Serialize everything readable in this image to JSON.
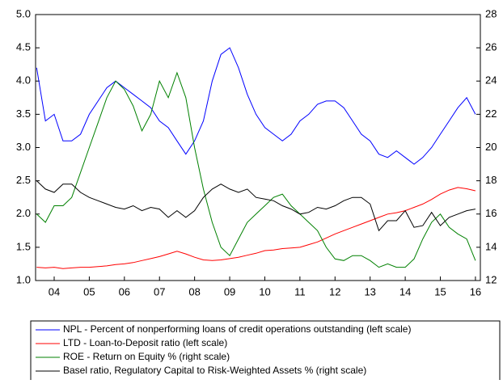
{
  "chart_data": {
    "type": "line",
    "xlim": [
      2003.97,
      2016.64
    ],
    "xticks": [
      {
        "value": 2004.5,
        "label": "04"
      },
      {
        "value": 2005.5,
        "label": "05"
      },
      {
        "value": 2006.5,
        "label": "06"
      },
      {
        "value": 2007.5,
        "label": "07"
      },
      {
        "value": 2008.5,
        "label": "08"
      },
      {
        "value": 2009.5,
        "label": "09"
      },
      {
        "value": 2010.5,
        "label": "10"
      },
      {
        "value": 2011.5,
        "label": "11"
      },
      {
        "value": 2012.5,
        "label": "12"
      },
      {
        "value": 2013.5,
        "label": "13"
      },
      {
        "value": 2014.5,
        "label": "14"
      },
      {
        "value": 2015.5,
        "label": "15"
      },
      {
        "value": 2016.5,
        "label": "16"
      }
    ],
    "ylim": [
      1.0,
      5.0
    ],
    "yticks": [
      {
        "value": 1.0,
        "label": "1.0"
      },
      1.5,
      {
        "value": 2.0,
        "label": "2.0"
      },
      2.5,
      {
        "value": 3.0,
        "label": "3.0"
      },
      3.5,
      {
        "value": 4.0,
        "label": "4.0"
      },
      4.5,
      {
        "value": 5.0,
        "label": "5.0"
      }
    ],
    "y2lim": [
      12,
      28
    ],
    "y2ticks": [
      12,
      14,
      16,
      18,
      20,
      22,
      24,
      26,
      28
    ],
    "x": [
      2004.0,
      2004.25,
      2004.5,
      2004.75,
      2005.0,
      2005.25,
      2005.5,
      2005.75,
      2006.0,
      2006.25,
      2006.5,
      2006.75,
      2007.0,
      2007.25,
      2007.5,
      2007.75,
      2008.0,
      2008.25,
      2008.5,
      2008.75,
      2009.0,
      2009.25,
      2009.5,
      2009.75,
      2010.0,
      2010.25,
      2010.5,
      2010.75,
      2011.0,
      2011.25,
      2011.5,
      2011.75,
      2012.0,
      2012.25,
      2012.5,
      2012.75,
      2013.0,
      2013.25,
      2013.5,
      2013.75,
      2014.0,
      2014.25,
      2014.5,
      2014.75,
      2015.0,
      2015.25,
      2015.5,
      2015.75,
      2016.0,
      2016.25,
      2016.5
    ],
    "series": [
      {
        "name": "NPL - Percent of nonperforming loans of credit operations outstanding (left scale)",
        "color": "#0000ff",
        "values": [
          4.2,
          3.4,
          3.5,
          3.1,
          3.1,
          3.2,
          3.5,
          3.7,
          3.9,
          4.0,
          3.9,
          3.8,
          3.7,
          3.6,
          3.4,
          3.3,
          3.1,
          2.9,
          3.1,
          3.4,
          4.0,
          4.4,
          4.5,
          4.2,
          3.8,
          3.5,
          3.3,
          3.2,
          3.1,
          3.2,
          3.4,
          3.5,
          3.65,
          3.7,
          3.7,
          3.6,
          3.4,
          3.2,
          3.1,
          2.9,
          2.85,
          2.95,
          2.85,
          2.75,
          2.85,
          3.0,
          3.2,
          3.4,
          3.6,
          3.75,
          3.5
        ]
      },
      {
        "name": "LTD - Loan-to-Deposit ratio (left scale)",
        "color": "#ff0000",
        "values": [
          1.2,
          1.19,
          1.2,
          1.18,
          1.19,
          1.2,
          1.2,
          1.21,
          1.22,
          1.24,
          1.25,
          1.27,
          1.3,
          1.33,
          1.36,
          1.4,
          1.44,
          1.4,
          1.35,
          1.31,
          1.3,
          1.31,
          1.33,
          1.35,
          1.38,
          1.41,
          1.45,
          1.46,
          1.48,
          1.49,
          1.5,
          1.54,
          1.58,
          1.64,
          1.7,
          1.75,
          1.8,
          1.85,
          1.9,
          1.95,
          2.0,
          2.02,
          2.05,
          2.1,
          2.15,
          2.22,
          2.3,
          2.36,
          2.4,
          2.38,
          2.35
        ]
      },
      {
        "name": "ROE - Return on Equity % (right scale)",
        "color": "#008000",
        "axis": "y2",
        "values": [
          16,
          15.5,
          16.5,
          16.5,
          17,
          18.5,
          20,
          21.5,
          23,
          24,
          23.5,
          22.5,
          21,
          22,
          24,
          23,
          24.5,
          23,
          20,
          17.5,
          15.5,
          14,
          13.5,
          14.5,
          15.5,
          16,
          16.5,
          17,
          17.2,
          16.5,
          16,
          15.5,
          15,
          14,
          13.3,
          13.2,
          13.5,
          13.5,
          13.2,
          12.8,
          13.0,
          12.8,
          12.8,
          13.3,
          14.5,
          15.5,
          16,
          15.2,
          14.8,
          14.5,
          13.2
        ]
      },
      {
        "name": "Basel ratio, Regulatory Capital to Risk-Weighted Assets % (right scale)",
        "color": "#000000",
        "axis": "y2",
        "values": [
          18,
          17.5,
          17.3,
          17.8,
          17.8,
          17.3,
          17.0,
          16.8,
          16.6,
          16.4,
          16.3,
          16.5,
          16.2,
          16.4,
          16.3,
          15.8,
          16.2,
          15.8,
          16.2,
          17.0,
          17.5,
          17.8,
          17.5,
          17.3,
          17.5,
          17.0,
          16.9,
          16.8,
          16.5,
          16.3,
          16.0,
          16.1,
          16.4,
          16.3,
          16.5,
          16.8,
          17.0,
          17.0,
          16.6,
          15.0,
          15.6,
          15.6,
          16.2,
          15.2,
          15.3,
          16.1,
          15.3,
          15.8,
          16.0,
          16.2,
          16.3
        ]
      }
    ]
  }
}
